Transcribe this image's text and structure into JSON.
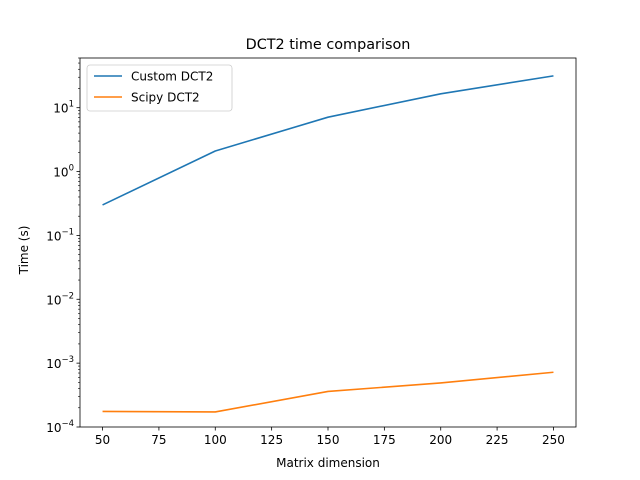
{
  "chart_data": {
    "type": "line",
    "title": "DCT2 time comparison",
    "xlabel": "Matrix dimension",
    "ylabel": "Time (s)",
    "x": [
      50,
      100,
      150,
      200,
      250
    ],
    "xticks": [
      "50",
      "75",
      "100",
      "125",
      "150",
      "175",
      "200",
      "225",
      "250"
    ],
    "xlim": [
      40,
      260
    ],
    "yscale": "log",
    "ylim": [
      0.0001,
      60
    ],
    "yticks": [
      {
        "base": "10",
        "exp": "1"
      },
      {
        "base": "10",
        "exp": "0"
      },
      {
        "base": "10",
        "exp": "−1"
      },
      {
        "base": "10",
        "exp": "−2"
      },
      {
        "base": "10",
        "exp": "−3"
      },
      {
        "base": "10",
        "exp": "−4"
      }
    ],
    "grid": false,
    "legend_position": "top-left",
    "series": [
      {
        "name": "Custom DCT2",
        "color": "#1f77b4",
        "values": [
          0.3,
          2.1,
          7.1,
          16.5,
          31.5
        ]
      },
      {
        "name": "Scipy DCT2",
        "color": "#ff7f0e",
        "values": [
          0.000175,
          0.000172,
          0.00036,
          0.00049,
          0.00072
        ]
      }
    ]
  }
}
